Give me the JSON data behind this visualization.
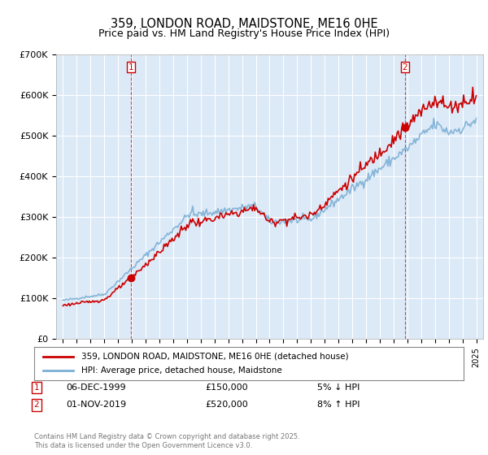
{
  "title_line1": "359, LONDON ROAD, MAIDSTONE, ME16 0HE",
  "title_line2": "Price paid vs. HM Land Registry's House Price Index (HPI)",
  "ylim": [
    0,
    700000
  ],
  "yticks": [
    0,
    100000,
    200000,
    300000,
    400000,
    500000,
    600000,
    700000
  ],
  "ytick_labels": [
    "£0",
    "£100K",
    "£200K",
    "£300K",
    "£400K",
    "£500K",
    "£600K",
    "£700K"
  ],
  "hpi_color": "#7bafd4",
  "price_color": "#cc0000",
  "marker1_year": 1999.92,
  "marker1_price": 150000,
  "marker1_label": "1",
  "marker2_year": 2019.83,
  "marker2_price": 520000,
  "marker2_label": "2",
  "marker1_date": "06-DEC-1999",
  "marker2_date": "01-NOV-2019",
  "legend_label1": "359, LONDON ROAD, MAIDSTONE, ME16 0HE (detached house)",
  "legend_label2": "HPI: Average price, detached house, Maidstone",
  "footnote": "Contains HM Land Registry data © Crown copyright and database right 2025.\nThis data is licensed under the Open Government Licence v3.0.",
  "background_color": "#ffffff",
  "plot_bg_color": "#dce9f7",
  "grid_color": "#ffffff",
  "annotation_box_color": "#cc0000",
  "xmin": 1994.5,
  "xmax": 2025.5
}
